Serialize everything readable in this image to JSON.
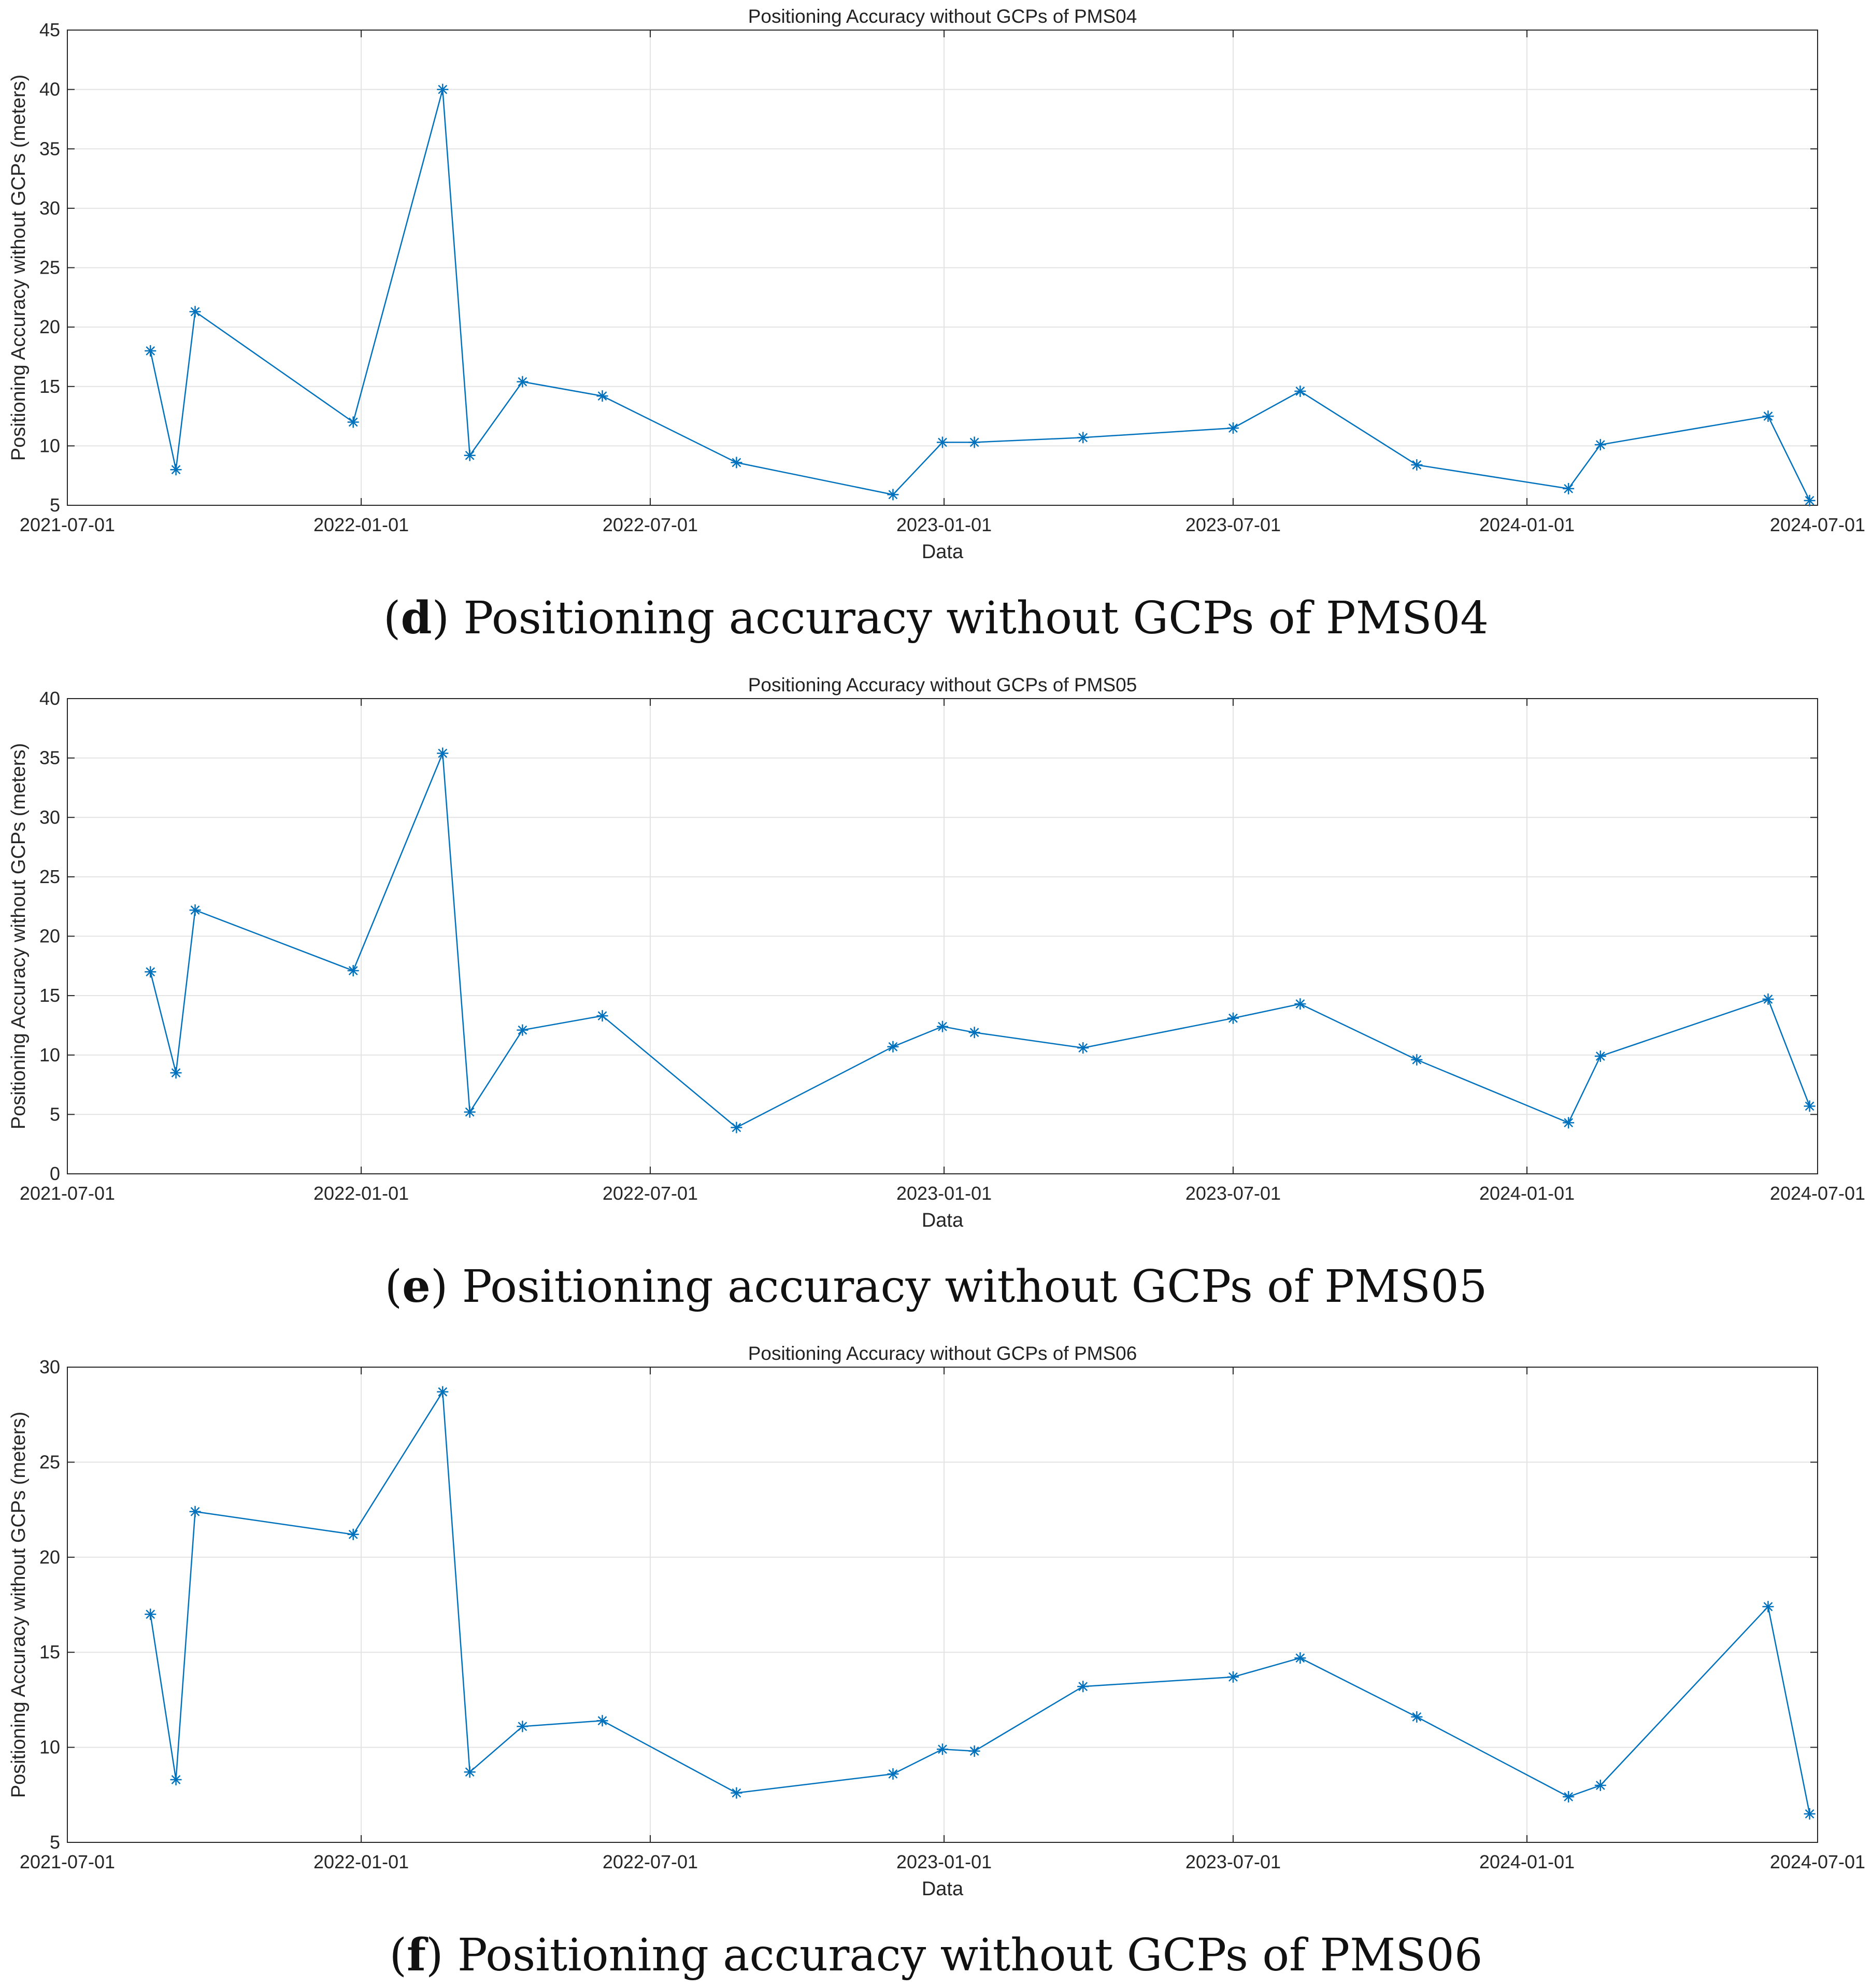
{
  "chart_data": [
    {
      "type": "line",
      "title": "Positioning Accuracy without GCPs of PMS04",
      "xlabel": "Data",
      "ylabel": "Positioning Accuracy without GCPs (meters)",
      "xticks": [
        "2021-07-01",
        "2022-01-01",
        "2022-07-01",
        "2023-01-01",
        "2023-07-01",
        "2024-01-01",
        "2024-07-01"
      ],
      "xlim": [
        "2021-07-01",
        "2024-07-01"
      ],
      "ylim": [
        5,
        45
      ],
      "yticks": [
        5,
        10,
        15,
        20,
        25,
        30,
        35,
        40,
        45
      ],
      "grid": true,
      "color": "#0072BD",
      "series": [
        {
          "name": "PMS04",
          "x": [
            "2021-08-22",
            "2021-09-07",
            "2021-09-19",
            "2021-12-27",
            "2022-02-21",
            "2022-03-10",
            "2022-04-12",
            "2022-06-01",
            "2022-08-24",
            "2022-11-30",
            "2022-12-31",
            "2023-01-20",
            "2023-03-29",
            "2023-07-01",
            "2023-08-12",
            "2023-10-24",
            "2024-01-27",
            "2024-02-16",
            "2024-05-31",
            "2024-06-26"
          ],
          "y": [
            18.0,
            8.0,
            21.3,
            12.0,
            40.0,
            9.2,
            15.4,
            14.2,
            8.6,
            5.9,
            10.3,
            10.3,
            10.7,
            11.5,
            14.6,
            8.4,
            6.4,
            10.1,
            12.5,
            5.4
          ]
        }
      ],
      "caption_letter": "d",
      "caption": " Positioning accuracy without GCPs of PMS04"
    },
    {
      "type": "line",
      "title": "Positioning Accuracy without GCPs of PMS05",
      "xlabel": "Data",
      "ylabel": "Positioning Accuracy without GCPs (meters)",
      "xticks": [
        "2021-07-01",
        "2022-01-01",
        "2022-07-01",
        "2023-01-01",
        "2023-07-01",
        "2024-01-01",
        "2024-07-01"
      ],
      "xlim": [
        "2021-07-01",
        "2024-07-01"
      ],
      "ylim": [
        0,
        40
      ],
      "yticks": [
        0,
        5,
        10,
        15,
        20,
        25,
        30,
        35,
        40
      ],
      "grid": true,
      "color": "#0072BD",
      "series": [
        {
          "name": "PMS05",
          "x": [
            "2021-08-22",
            "2021-09-07",
            "2021-09-19",
            "2021-12-27",
            "2022-02-21",
            "2022-03-10",
            "2022-04-12",
            "2022-06-01",
            "2022-08-24",
            "2022-11-30",
            "2022-12-31",
            "2023-01-20",
            "2023-03-29",
            "2023-07-01",
            "2023-08-12",
            "2023-10-24",
            "2024-01-27",
            "2024-02-16",
            "2024-05-31",
            "2024-06-26"
          ],
          "y": [
            17.0,
            8.5,
            22.2,
            17.1,
            35.4,
            5.2,
            12.1,
            13.3,
            3.9,
            10.7,
            12.4,
            11.9,
            10.6,
            13.1,
            14.3,
            9.6,
            4.3,
            9.9,
            14.7,
            5.7
          ]
        }
      ],
      "caption_letter": "e",
      "caption": " Positioning accuracy without GCPs of PMS05"
    },
    {
      "type": "line",
      "title": "Positioning Accuracy without GCPs of PMS06",
      "xlabel": "Data",
      "ylabel": "Positioning Accuracy without GCPs (meters)",
      "xticks": [
        "2021-07-01",
        "2022-01-01",
        "2022-07-01",
        "2023-01-01",
        "2023-07-01",
        "2024-01-01",
        "2024-07-01"
      ],
      "xlim": [
        "2021-07-01",
        "2024-07-01"
      ],
      "ylim": [
        5,
        30
      ],
      "yticks": [
        5,
        10,
        15,
        20,
        25,
        30
      ],
      "grid": true,
      "color": "#0072BD",
      "series": [
        {
          "name": "PMS06",
          "x": [
            "2021-08-22",
            "2021-09-07",
            "2021-09-19",
            "2021-12-27",
            "2022-02-21",
            "2022-03-10",
            "2022-04-12",
            "2022-06-01",
            "2022-08-24",
            "2022-11-30",
            "2022-12-31",
            "2023-01-20",
            "2023-03-29",
            "2023-07-01",
            "2023-08-12",
            "2023-10-24",
            "2024-01-27",
            "2024-02-16",
            "2024-05-31",
            "2024-06-26"
          ],
          "y": [
            17.0,
            8.3,
            22.4,
            21.2,
            28.7,
            8.7,
            11.1,
            11.4,
            7.6,
            8.6,
            9.9,
            9.8,
            13.2,
            13.7,
            14.7,
            11.6,
            7.4,
            8.0,
            17.4,
            6.5
          ]
        }
      ],
      "caption_letter": "f",
      "caption": " Positioning accuracy without GCPs of PMS06"
    }
  ]
}
